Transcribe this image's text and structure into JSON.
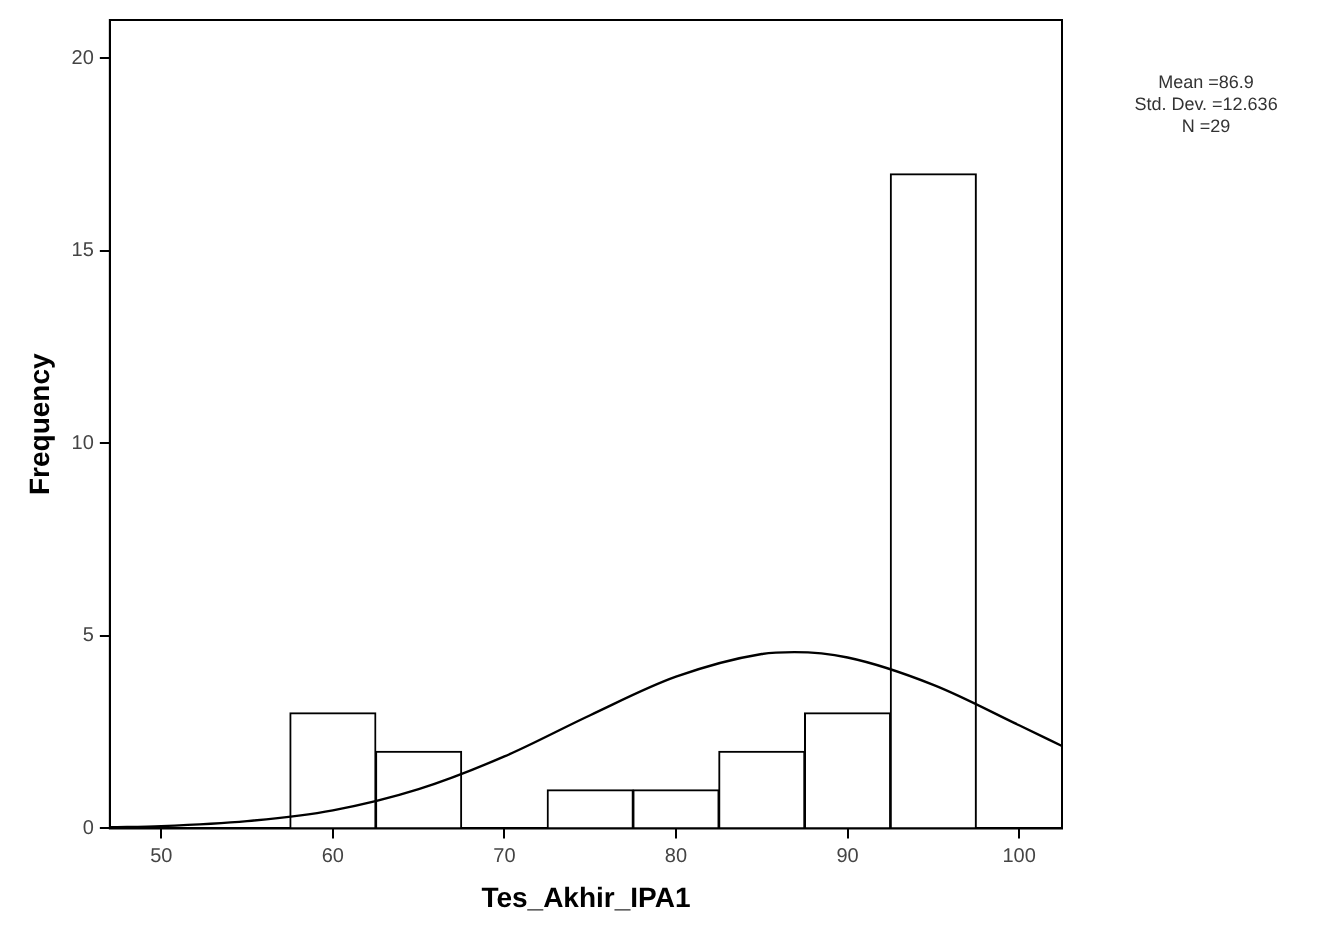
{
  "chart_data": {
    "type": "histogram",
    "xlabel": "Tes_Akhir_IPA1",
    "ylabel": "Frequency",
    "bins": [
      57.5,
      62.5,
      67.5,
      72.5,
      77.5,
      82.5,
      87.5,
      92.5,
      97.5
    ],
    "values": [
      3,
      2,
      0,
      1,
      1,
      2,
      3,
      17
    ],
    "color": "#ffffff",
    "series": [
      {
        "type": "line",
        "color": "#000000",
        "x": [
          47,
          50,
          55,
          60,
          65,
          70,
          75,
          80,
          85,
          86.9,
          90,
          95,
          100,
          102.5
        ],
        "values": [
          0.03,
          0.06,
          0.19,
          0.47,
          1.02,
          1.87,
          2.94,
          3.94,
          4.53,
          4.58,
          4.44,
          3.73,
          2.68,
          2.14
        ]
      }
    ],
    "marker": "none",
    "xlim": [
      47,
      102.5
    ],
    "xticks": [
      50,
      60,
      70,
      80,
      90,
      100
    ],
    "ylim": [
      0,
      21
    ],
    "yticks": [
      0,
      5,
      10,
      15,
      20
    ],
    "grid": false,
    "legend": false,
    "annotations": [
      "Mean =86.9",
      "Std. Dev. =12.636",
      "N =29"
    ]
  }
}
